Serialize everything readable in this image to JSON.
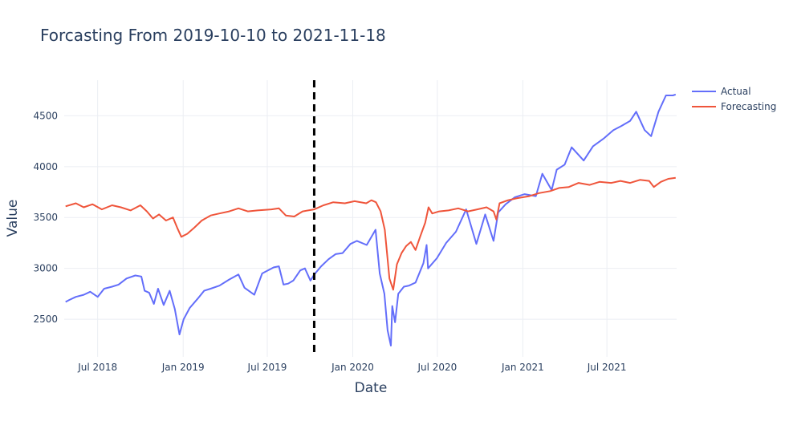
{
  "chart_data": {
    "type": "line",
    "title": "Forcasting From 2019-10-10 to 2021-11-18",
    "xlabel": "Date",
    "ylabel": "Value",
    "x_range": [
      "2018-04-20",
      "2021-11-28"
    ],
    "ylim": [
      2130,
      4850
    ],
    "x_ticks": [
      {
        "date": "2018-07-01",
        "label": "Jul 2018"
      },
      {
        "date": "2019-01-01",
        "label": "Jan 2019"
      },
      {
        "date": "2019-07-01",
        "label": "Jul 2019"
      },
      {
        "date": "2020-01-01",
        "label": "Jan 2020"
      },
      {
        "date": "2020-07-01",
        "label": "Jul 2020"
      },
      {
        "date": "2021-01-01",
        "label": "Jan 2021"
      },
      {
        "date": "2021-07-01",
        "label": "Jul 2021"
      }
    ],
    "y_ticks": [
      {
        "value": 2500,
        "label": "2500"
      },
      {
        "value": 3000,
        "label": "3000"
      },
      {
        "value": 3500,
        "label": "3500"
      },
      {
        "value": 4000,
        "label": "4000"
      },
      {
        "value": 4500,
        "label": "4500"
      }
    ],
    "grid": true,
    "legend_position": "top-right",
    "vline": {
      "date": "2019-10-10",
      "style": "dashed",
      "color": "#000000"
    },
    "series": [
      {
        "name": "Actual",
        "color": "#636efa",
        "points": [
          [
            "2018-04-23",
            2670
          ],
          [
            "2018-05-01",
            2690
          ],
          [
            "2018-05-15",
            2720
          ],
          [
            "2018-06-01",
            2740
          ],
          [
            "2018-06-15",
            2770
          ],
          [
            "2018-07-01",
            2720
          ],
          [
            "2018-07-15",
            2800
          ],
          [
            "2018-08-01",
            2820
          ],
          [
            "2018-08-15",
            2840
          ],
          [
            "2018-09-01",
            2900
          ],
          [
            "2018-09-20",
            2930
          ],
          [
            "2018-10-03",
            2920
          ],
          [
            "2018-10-10",
            2780
          ],
          [
            "2018-10-20",
            2760
          ],
          [
            "2018-10-30",
            2650
          ],
          [
            "2018-11-08",
            2800
          ],
          [
            "2018-11-20",
            2640
          ],
          [
            "2018-12-03",
            2780
          ],
          [
            "2018-12-14",
            2600
          ],
          [
            "2018-12-24",
            2350
          ],
          [
            "2019-01-02",
            2500
          ],
          [
            "2019-01-15",
            2610
          ],
          [
            "2019-02-01",
            2700
          ],
          [
            "2019-02-15",
            2780
          ],
          [
            "2019-03-01",
            2800
          ],
          [
            "2019-03-20",
            2830
          ],
          [
            "2019-04-10",
            2890
          ],
          [
            "2019-04-30",
            2940
          ],
          [
            "2019-05-13",
            2810
          ],
          [
            "2019-06-03",
            2740
          ],
          [
            "2019-06-20",
            2950
          ],
          [
            "2019-07-15",
            3010
          ],
          [
            "2019-07-26",
            3020
          ],
          [
            "2019-08-05",
            2840
          ],
          [
            "2019-08-15",
            2850
          ],
          [
            "2019-08-26",
            2880
          ],
          [
            "2019-09-10",
            2980
          ],
          [
            "2019-09-20",
            3000
          ],
          [
            "2019-10-02",
            2880
          ],
          [
            "2019-10-10",
            2940
          ],
          [
            "2019-10-25",
            3020
          ],
          [
            "2019-11-10",
            3090
          ],
          [
            "2019-11-25",
            3140
          ],
          [
            "2019-12-10",
            3150
          ],
          [
            "2019-12-27",
            3240
          ],
          [
            "2020-01-10",
            3270
          ],
          [
            "2020-01-31",
            3230
          ],
          [
            "2020-02-19",
            3380
          ],
          [
            "2020-02-28",
            2950
          ],
          [
            "2020-03-09",
            2750
          ],
          [
            "2020-03-16",
            2390
          ],
          [
            "2020-03-23",
            2240
          ],
          [
            "2020-03-26",
            2630
          ],
          [
            "2020-04-01",
            2470
          ],
          [
            "2020-04-08",
            2750
          ],
          [
            "2020-04-20",
            2820
          ],
          [
            "2020-05-01",
            2830
          ],
          [
            "2020-05-15",
            2860
          ],
          [
            "2020-06-01",
            3050
          ],
          [
            "2020-06-08",
            3230
          ],
          [
            "2020-06-11",
            3000
          ],
          [
            "2020-06-30",
            3100
          ],
          [
            "2020-07-20",
            3250
          ],
          [
            "2020-08-10",
            3360
          ],
          [
            "2020-09-01",
            3580
          ],
          [
            "2020-09-23",
            3240
          ],
          [
            "2020-10-12",
            3530
          ],
          [
            "2020-10-30",
            3270
          ],
          [
            "2020-11-09",
            3550
          ],
          [
            "2020-11-25",
            3630
          ],
          [
            "2020-12-15",
            3700
          ],
          [
            "2021-01-05",
            3730
          ],
          [
            "2021-01-29",
            3710
          ],
          [
            "2021-02-12",
            3930
          ],
          [
            "2021-03-04",
            3770
          ],
          [
            "2021-03-15",
            3970
          ],
          [
            "2021-04-01",
            4020
          ],
          [
            "2021-04-16",
            4190
          ],
          [
            "2021-05-12",
            4060
          ],
          [
            "2021-06-01",
            4200
          ],
          [
            "2021-06-25",
            4280
          ],
          [
            "2021-07-15",
            4360
          ],
          [
            "2021-08-01",
            4400
          ],
          [
            "2021-08-20",
            4450
          ],
          [
            "2021-09-02",
            4540
          ],
          [
            "2021-09-20",
            4360
          ],
          [
            "2021-10-04",
            4300
          ],
          [
            "2021-10-20",
            4540
          ],
          [
            "2021-11-05",
            4700
          ],
          [
            "2021-11-20",
            4700
          ],
          [
            "2021-11-26",
            4710
          ]
        ]
      },
      {
        "name": "Forecasting",
        "color": "#ef553b",
        "points": [
          [
            "2018-04-23",
            3610
          ],
          [
            "2018-05-15",
            3640
          ],
          [
            "2018-06-01",
            3600
          ],
          [
            "2018-06-20",
            3630
          ],
          [
            "2018-07-10",
            3580
          ],
          [
            "2018-08-01",
            3620
          ],
          [
            "2018-08-20",
            3600
          ],
          [
            "2018-09-10",
            3570
          ],
          [
            "2018-10-01",
            3620
          ],
          [
            "2018-10-15",
            3560
          ],
          [
            "2018-10-28",
            3490
          ],
          [
            "2018-11-10",
            3530
          ],
          [
            "2018-11-25",
            3470
          ],
          [
            "2018-12-10",
            3500
          ],
          [
            "2018-12-20",
            3390
          ],
          [
            "2018-12-28",
            3310
          ],
          [
            "2019-01-10",
            3340
          ],
          [
            "2019-01-25",
            3400
          ],
          [
            "2019-02-10",
            3470
          ],
          [
            "2019-03-01",
            3520
          ],
          [
            "2019-03-20",
            3540
          ],
          [
            "2019-04-10",
            3560
          ],
          [
            "2019-04-30",
            3590
          ],
          [
            "2019-05-20",
            3560
          ],
          [
            "2019-06-10",
            3570
          ],
          [
            "2019-07-10",
            3580
          ],
          [
            "2019-07-26",
            3590
          ],
          [
            "2019-08-10",
            3520
          ],
          [
            "2019-08-28",
            3510
          ],
          [
            "2019-09-15",
            3560
          ],
          [
            "2019-10-10",
            3580
          ],
          [
            "2019-10-30",
            3620
          ],
          [
            "2019-11-20",
            3650
          ],
          [
            "2019-12-15",
            3640
          ],
          [
            "2020-01-05",
            3660
          ],
          [
            "2020-01-30",
            3640
          ],
          [
            "2020-02-10",
            3670
          ],
          [
            "2020-02-20",
            3650
          ],
          [
            "2020-03-01",
            3560
          ],
          [
            "2020-03-10",
            3380
          ],
          [
            "2020-03-20",
            2900
          ],
          [
            "2020-03-28",
            2790
          ],
          [
            "2020-04-05",
            3040
          ],
          [
            "2020-04-15",
            3150
          ],
          [
            "2020-04-25",
            3220
          ],
          [
            "2020-05-05",
            3260
          ],
          [
            "2020-05-15",
            3180
          ],
          [
            "2020-05-25",
            3310
          ],
          [
            "2020-06-05",
            3450
          ],
          [
            "2020-06-12",
            3600
          ],
          [
            "2020-06-20",
            3540
          ],
          [
            "2020-07-05",
            3560
          ],
          [
            "2020-07-25",
            3570
          ],
          [
            "2020-08-15",
            3590
          ],
          [
            "2020-09-05",
            3560
          ],
          [
            "2020-09-25",
            3580
          ],
          [
            "2020-10-15",
            3600
          ],
          [
            "2020-10-30",
            3560
          ],
          [
            "2020-11-05",
            3480
          ],
          [
            "2020-11-12",
            3640
          ],
          [
            "2020-11-30",
            3670
          ],
          [
            "2020-12-20",
            3690
          ],
          [
            "2021-01-15",
            3710
          ],
          [
            "2021-02-05",
            3740
          ],
          [
            "2021-03-01",
            3760
          ],
          [
            "2021-03-20",
            3790
          ],
          [
            "2021-04-10",
            3800
          ],
          [
            "2021-05-01",
            3840
          ],
          [
            "2021-05-25",
            3820
          ],
          [
            "2021-06-15",
            3850
          ],
          [
            "2021-07-10",
            3840
          ],
          [
            "2021-07-30",
            3860
          ],
          [
            "2021-08-20",
            3840
          ],
          [
            "2021-09-10",
            3870
          ],
          [
            "2021-09-30",
            3860
          ],
          [
            "2021-10-10",
            3800
          ],
          [
            "2021-10-25",
            3850
          ],
          [
            "2021-11-10",
            3880
          ],
          [
            "2021-11-26",
            3890
          ]
        ]
      }
    ]
  }
}
